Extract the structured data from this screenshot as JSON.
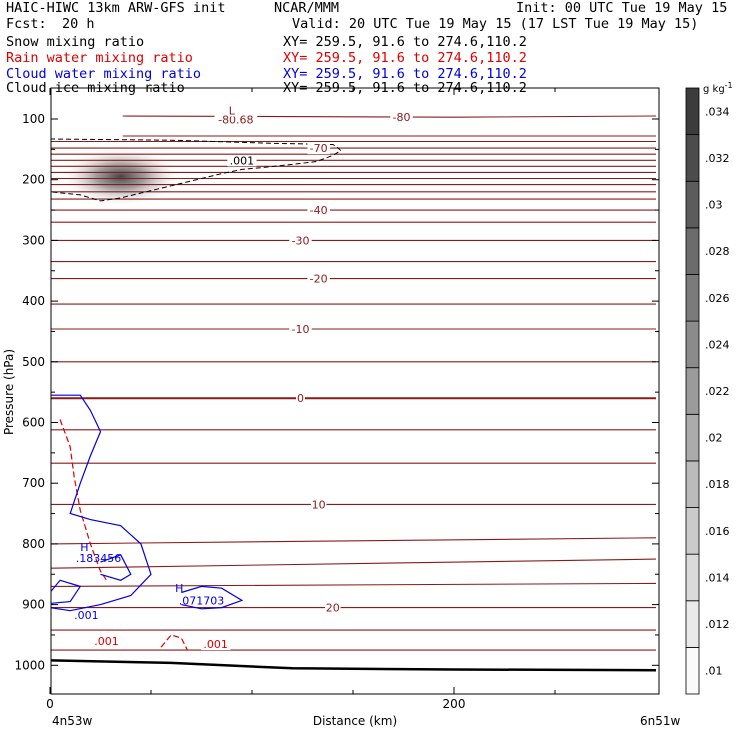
{
  "header": {
    "title_left": "HAIC-HIWC 13km ARW-GFS init",
    "org": "NCAR/MMM",
    "init": "Init: 00 UTC Tue 19 May 15",
    "fcst_label": "Fcst:",
    "fcst_value": "20 h",
    "valid": "Valid: 20 UTC Tue 19 May 15 (17 LST Tue 19 May 15)",
    "fields": [
      {
        "name": "Snow mixing ratio",
        "xy": "XY= 259.5, 91.6 to 274.6,110.2",
        "color": "#000000"
      },
      {
        "name": "Rain water mixing ratio",
        "xy": "XY= 259.5, 91.6 to 274.6,110.2",
        "color": "#e00000"
      },
      {
        "name": "Cloud water mixing ratio",
        "xy": "XY= 259.5, 91.6 to 274.6,110.2",
        "color": "#0000e0"
      },
      {
        "name": "Cloud ice mixing ratio",
        "xy": "XY= 259.5, 91.6 to 274.6,110.2",
        "color": "#000000"
      }
    ]
  },
  "chart_data": {
    "type": "contour",
    "ylabel": "Pressure (hPa)",
    "xlabel": "Distance (km)",
    "left_endpoint": "4n53w",
    "right_endpoint": "6n51w",
    "xlim": [
      0,
      300
    ],
    "ylim": [
      1050,
      70
    ],
    "x_ticks": [
      0,
      200
    ],
    "x_minor_ticks": [
      50,
      100,
      150,
      250
    ],
    "y_ticks": [
      100,
      200,
      300,
      400,
      500,
      600,
      700,
      800,
      900,
      1000
    ],
    "temperature_contour_color": "#8b1a1a",
    "temperature_labels": [
      {
        "text": "-80",
        "x": 174,
        "p": 97
      },
      {
        "text": "-80.68",
        "x": 92,
        "p": 101
      },
      {
        "text": "L",
        "x": 90,
        "p": 86
      },
      {
        "text": "-70",
        "x": 133,
        "p": 148
      },
      {
        "text": "-40",
        "x": 133,
        "p": 250
      },
      {
        "text": "-30",
        "x": 124,
        "p": 300
      },
      {
        "text": "-20",
        "x": 133,
        "p": 363
      },
      {
        "text": "-10",
        "x": 124,
        "p": 446
      },
      {
        "text": "0",
        "x": 124,
        "p": 560
      },
      {
        "text": "10",
        "x": 133,
        "p": 735
      },
      {
        "text": "20",
        "x": 140,
        "p": 905
      }
    ],
    "temperature_contours": [
      [
        [
          36,
          95
        ],
        [
          200,
          97
        ],
        [
          300,
          95
        ]
      ],
      [
        [
          36,
          128
        ],
        [
          300,
          128
        ]
      ],
      [
        [
          0,
          137
        ],
        [
          300,
          137
        ]
      ],
      [
        [
          0,
          148
        ],
        [
          300,
          148
        ]
      ],
      [
        [
          0,
          158
        ],
        [
          300,
          158
        ]
      ],
      [
        [
          0,
          168
        ],
        [
          300,
          168
        ]
      ],
      [
        [
          0,
          178
        ],
        [
          300,
          178
        ]
      ],
      [
        [
          0,
          188
        ],
        [
          300,
          188
        ]
      ],
      [
        [
          0,
          198
        ],
        [
          300,
          198
        ]
      ],
      [
        [
          0,
          208
        ],
        [
          300,
          208
        ]
      ],
      [
        [
          0,
          220
        ],
        [
          300,
          220
        ]
      ],
      [
        [
          0,
          232
        ],
        [
          300,
          232
        ]
      ],
      [
        [
          0,
          250
        ],
        [
          300,
          250
        ]
      ],
      [
        [
          0,
          270
        ],
        [
          300,
          270
        ]
      ],
      [
        [
          0,
          300
        ],
        [
          300,
          300
        ]
      ],
      [
        [
          0,
          335
        ],
        [
          300,
          335
        ]
      ],
      [
        [
          0,
          363
        ],
        [
          300,
          363
        ]
      ],
      [
        [
          0,
          405
        ],
        [
          300,
          405
        ]
      ],
      [
        [
          0,
          446
        ],
        [
          300,
          446
        ]
      ],
      [
        [
          0,
          500
        ],
        [
          300,
          500
        ]
      ],
      [
        [
          0,
          560
        ],
        [
          300,
          560
        ]
      ],
      [
        [
          0,
          612
        ],
        [
          300,
          612
        ]
      ],
      [
        [
          0,
          667
        ],
        [
          300,
          667
        ]
      ],
      [
        [
          0,
          735
        ],
        [
          300,
          735
        ]
      ],
      [
        [
          0,
          800
        ],
        [
          300,
          790
        ]
      ],
      [
        [
          0,
          840
        ],
        [
          300,
          825
        ]
      ],
      [
        [
          0,
          870
        ],
        [
          300,
          865
        ]
      ],
      [
        [
          0,
          905
        ],
        [
          300,
          905
        ]
      ],
      [
        [
          0,
          942
        ],
        [
          300,
          942
        ]
      ],
      [
        [
          0,
          975
        ],
        [
          300,
          975
        ]
      ]
    ],
    "terrain_line": [
      [
        0,
        992
      ],
      [
        60,
        996
      ],
      [
        120,
        1005
      ],
      [
        200,
        1007
      ],
      [
        300,
        1008
      ]
    ],
    "snow_label": ".001",
    "snow_contour": [
      [
        0,
        133
      ],
      [
        60,
        135
      ],
      [
        110,
        140
      ],
      [
        140,
        142
      ],
      [
        142,
        146
      ],
      [
        144,
        152
      ],
      [
        140,
        160
      ],
      [
        132,
        170
      ],
      [
        122,
        174
      ],
      [
        105,
        180
      ],
      [
        95,
        183
      ],
      [
        85,
        190
      ],
      [
        75,
        198
      ],
      [
        60,
        210
      ],
      [
        50,
        218
      ],
      [
        35,
        230
      ],
      [
        25,
        235
      ],
      [
        15,
        225
      ],
      [
        0,
        220
      ]
    ],
    "snow_label_pos": {
      "x": 95,
      "p": 168
    },
    "snow_shade": {
      "x": 35,
      "p": 195,
      "level": 0.028
    },
    "colorbar": {
      "unit": "g kg",
      "unit_sup": "-1",
      "labels": [
        ".01",
        ".012",
        ".014",
        ".016",
        ".018",
        ".02",
        ".022",
        ".024",
        ".026",
        ".028",
        ".03",
        ".032",
        ".034"
      ]
    },
    "rain_contours": [
      {
        "label": ".001",
        "points": [
          [
            5,
            595
          ],
          [
            10,
            640
          ],
          [
            12,
            690
          ],
          [
            15,
            745
          ],
          [
            20,
            800
          ],
          [
            25,
            845
          ],
          [
            28,
            860
          ]
        ],
        "label_pos": {
          "x": 28,
          "p": 960
        }
      },
      {
        "label": ".001",
        "points": [
          [
            55,
            970
          ],
          [
            60,
            950
          ],
          [
            65,
            955
          ],
          [
            68,
            975
          ]
        ],
        "label_pos": {
          "x": 82,
          "p": 965
        }
      }
    ],
    "rain_labels": [
      ".001",
      ".001"
    ],
    "cloud_water_contours": [
      [
        [
          0,
          555
        ],
        [
          15,
          555
        ],
        [
          20,
          580
        ],
        [
          25,
          615
        ],
        [
          20,
          655
        ],
        [
          15,
          700
        ],
        [
          10,
          750
        ],
        [
          20,
          760
        ],
        [
          35,
          770
        ],
        [
          45,
          800
        ],
        [
          50,
          850
        ],
        [
          40,
          885
        ],
        [
          25,
          900
        ],
        [
          10,
          910
        ],
        [
          0,
          905
        ]
      ],
      [
        [
          25,
          830
        ],
        [
          35,
          818
        ],
        [
          40,
          850
        ],
        [
          35,
          860
        ],
        [
          25,
          850
        ]
      ],
      [
        [
          0,
          880
        ],
        [
          5,
          860
        ],
        [
          15,
          870
        ],
        [
          10,
          895
        ],
        [
          0,
          898
        ]
      ],
      [
        [
          65,
          880
        ],
        [
          75,
          870
        ],
        [
          85,
          873
        ],
        [
          95,
          893
        ],
        [
          85,
          905
        ],
        [
          75,
          907
        ],
        [
          65,
          900
        ]
      ]
    ],
    "cloud_water_labels": [
      {
        "text": "H",
        "x": 17,
        "p": 805
      },
      {
        "text": ".183456",
        "x": 24,
        "p": 823
      },
      {
        "text": ".001",
        "x": 18,
        "p": 917
      },
      {
        "text": "H",
        "x": 64,
        "p": 873
      },
      {
        "text": ".071703",
        "x": 75,
        "p": 893
      }
    ]
  }
}
